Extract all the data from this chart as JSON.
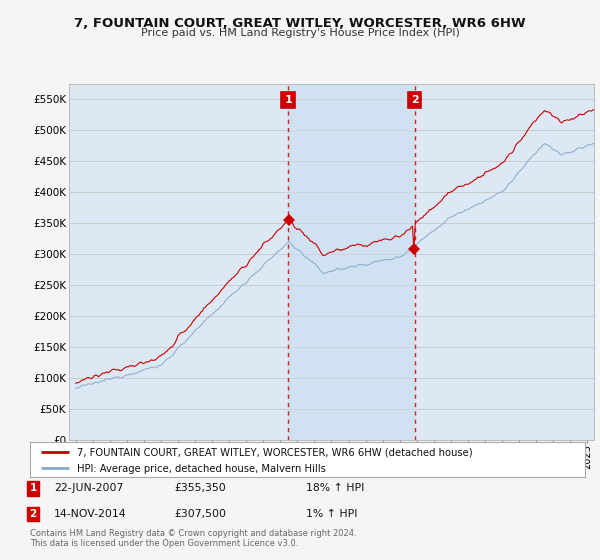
{
  "title": "7, FOUNTAIN COURT, GREAT WITLEY, WORCESTER, WR6 6HW",
  "subtitle": "Price paid vs. HM Land Registry's House Price Index (HPI)",
  "legend_line1": "7, FOUNTAIN COURT, GREAT WITLEY, WORCESTER, WR6 6HW (detached house)",
  "legend_line2": "HPI: Average price, detached house, Malvern Hills",
  "sale1_date": "22-JUN-2007",
  "sale1_price": "£355,350",
  "sale1_hpi": "18% ↑ HPI",
  "sale1_year": 2007.47,
  "sale1_value": 355350,
  "sale2_date": "14-NOV-2014",
  "sale2_price": "£307,500",
  "sale2_hpi": "1% ↑ HPI",
  "sale2_year": 2014.87,
  "sale2_value": 307500,
  "hpi_line_color": "#88aacc",
  "price_line_color": "#cc0000",
  "vline_color": "#cc0000",
  "grid_color": "#cccccc",
  "background_color": "#dce9f5",
  "shade_color": "#c8ddf0",
  "annotation_box_color": "#cc0000",
  "ylim": [
    0,
    575000
  ],
  "xlim_start": 1994.6,
  "xlim_end": 2025.4,
  "copyright_text": "Contains HM Land Registry data © Crown copyright and database right 2024.\nThis data is licensed under the Open Government Licence v3.0."
}
